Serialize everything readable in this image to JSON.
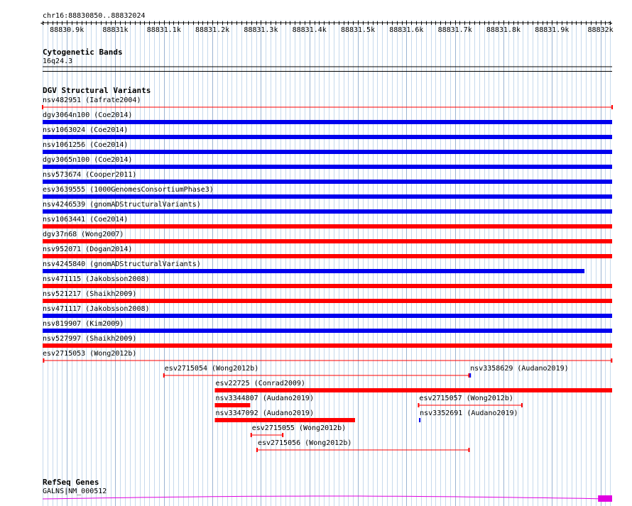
{
  "location": "chr16:88830850..88832024",
  "ruler": {
    "start": 88830850,
    "end": 88832024,
    "labels": [
      "88830.9k",
      "88831k",
      "88831.1k",
      "88831.2k",
      "88831.3k",
      "88831.4k",
      "88831.5k",
      "88831.6k",
      "88831.7k",
      "88831.8k",
      "88831.9k",
      "88832k"
    ],
    "label_positions": [
      88830900,
      88831000,
      88831100,
      88831200,
      88831300,
      88831400,
      88831500,
      88831600,
      88831700,
      88831800,
      88831900,
      88832000
    ]
  },
  "colors": {
    "loss": "#ff0000",
    "gain": "#0000ee",
    "gene": "#e000e0",
    "divider": "#000000"
  },
  "tracks": {
    "cytoband": {
      "title": "Cytogenetic Bands",
      "band": "16q24.3"
    },
    "dgv": {
      "title": "DGV Structural Variants",
      "rows": [
        {
          "label": "nsv482951 (Iafrate2004)",
          "start": 88830850,
          "end": 88832024,
          "color": "loss",
          "style": "thin"
        },
        {
          "label": "dgv3064n100 (Coe2014)",
          "start": 88830850,
          "end": 88832024,
          "color": "gain",
          "style": "bar"
        },
        {
          "label": "nsv1063024 (Coe2014)",
          "start": 88830850,
          "end": 88832024,
          "color": "gain",
          "style": "bar"
        },
        {
          "label": "nsv1061256 (Coe2014)",
          "start": 88830850,
          "end": 88832024,
          "color": "gain",
          "style": "bar"
        },
        {
          "label": "dgv3065n100 (Coe2014)",
          "start": 88830850,
          "end": 88832024,
          "color": "gain",
          "style": "bar"
        },
        {
          "label": "nsv573674 (Cooper2011)",
          "start": 88830850,
          "end": 88832024,
          "color": "gain",
          "style": "bar"
        },
        {
          "label": "esv3639555 (1000GenomesConsortiumPhase3)",
          "start": 88830850,
          "end": 88832024,
          "color": "gain",
          "style": "bar"
        },
        {
          "label": "nsv4246539 (gnomADStructuralVariants)",
          "start": 88830850,
          "end": 88832024,
          "color": "gain",
          "style": "bar"
        },
        {
          "label": "nsv1063441 (Coe2014)",
          "start": 88830850,
          "end": 88832024,
          "color": "loss",
          "style": "bar"
        },
        {
          "label": "dgv37n68 (Wong2007)",
          "start": 88830850,
          "end": 88832024,
          "color": "loss",
          "style": "bar"
        },
        {
          "label": "nsv952071 (Dogan2014)",
          "start": 88830850,
          "end": 88832024,
          "color": "loss",
          "style": "bar"
        },
        {
          "label": "nsv4245840 (gnomADStructuralVariants)",
          "start": 88830850,
          "end": 88831967,
          "color": "gain",
          "style": "bar"
        },
        {
          "label": "nsv471115 (Jakobsson2008)",
          "start": 88830850,
          "end": 88832024,
          "color": "loss",
          "style": "bar"
        },
        {
          "label": "nsv521217 (Shaikh2009)",
          "start": 88830850,
          "end": 88832024,
          "color": "loss",
          "style": "bar"
        },
        {
          "label": "nsv471117 (Jakobsson2008)",
          "start": 88830850,
          "end": 88832024,
          "color": "gain",
          "style": "bar"
        },
        {
          "label": "nsv819907 (Kim2009)",
          "start": 88830850,
          "end": 88832024,
          "color": "gain",
          "style": "bar"
        },
        {
          "label": "nsv527997 (Shaikh2009)",
          "start": 88830850,
          "end": 88832024,
          "color": "loss",
          "style": "bar"
        },
        {
          "label": "esv2715053 (Wong2012b)",
          "start": 88830852,
          "end": 88832023,
          "color": "loss",
          "style": "thin"
        }
      ],
      "packed": [
        {
          "label": "esv2715054 (Wong2012b)",
          "start": 88831100,
          "end": 88831729,
          "color": "loss",
          "style": "thin",
          "lane": 0
        },
        {
          "label": "nsv3358629 (Audano2019)",
          "start": 88831730,
          "end": 88831733,
          "color": "gain",
          "style": "bar",
          "lane": 0
        },
        {
          "label": "esv22725 (Conrad2009)",
          "start": 88831205,
          "end": 88832024,
          "color": "loss",
          "style": "bar",
          "lane": 1
        },
        {
          "label": "nsv3344807 (Audano2019)",
          "start": 88831205,
          "end": 88831278,
          "color": "loss",
          "style": "bar",
          "lane": 2
        },
        {
          "label": "esv2715057 (Wong2012b)",
          "start": 88831625,
          "end": 88831838,
          "color": "loss",
          "style": "thin",
          "lane": 2
        },
        {
          "label": "nsv3347092 (Audano2019)",
          "start": 88831205,
          "end": 88831494,
          "color": "loss",
          "style": "bar",
          "lane": 3
        },
        {
          "label": "nsv3352691 (Audano2019)",
          "start": 88831626,
          "end": 88831629,
          "color": "gain",
          "style": "bar",
          "lane": 3
        },
        {
          "label": "esv2715055 (Wong2012b)",
          "start": 88831280,
          "end": 88831345,
          "color": "loss",
          "style": "thin",
          "lane": 4
        },
        {
          "label": "esv2715056 (Wong2012b)",
          "start": 88831292,
          "end": 88831729,
          "color": "loss",
          "style": "thin",
          "lane": 5
        }
      ]
    },
    "refseq": {
      "title": "RefSeq Genes",
      "label": "GALNS|NM_000512",
      "start": 88830850,
      "end": 88832024,
      "exon_start": 88831995,
      "exon_end": 88832024
    }
  }
}
